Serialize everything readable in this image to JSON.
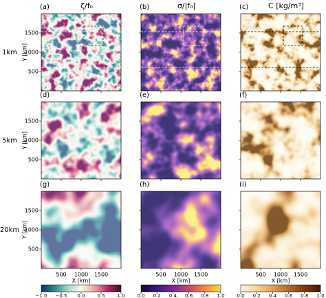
{
  "chart_data": {
    "type": "image-grid",
    "panels": [
      "(a)",
      "(b)",
      "(c)",
      "(d)",
      "(e)",
      "(f)",
      "(g)",
      "(h)",
      "(i)"
    ],
    "rows": [
      "1km",
      "5km",
      "20km"
    ],
    "columns": [
      {
        "title": "ζ/f₀",
        "lim": [
          -1,
          1
        ],
        "colors": [
          "#1d2e5a",
          "#2a8a8a",
          "#a8d8c8",
          "#f8f6f2",
          "#e8a8a0",
          "#b02a5a",
          "#3a0a30"
        ],
        "ticks": [
          {
            "value": -1,
            "label": "−1.0"
          },
          {
            "value": -0.5,
            "label": "−0.5"
          },
          {
            "value": 0,
            "label": "0.0"
          },
          0.5,
          {
            "value": 1,
            "label": "1.0"
          }
        ]
      },
      {
        "title": "σ/|f₀|",
        "lim": [
          0,
          1
        ],
        "colors": [
          "#0d0a30",
          "#3a1a7a",
          "#7a2a8a",
          "#c04a6a",
          "#f08a3a",
          "#f8e040"
        ],
        "ticks": [
          {
            "value": 0,
            "label": "0.0"
          },
          0.2,
          0.4,
          0.6,
          0.8,
          {
            "value": 1,
            "label": "1.0"
          }
        ]
      },
      {
        "title": "C [kg/m³]",
        "lim": [
          0,
          1
        ],
        "colors": [
          "#fdf6e0",
          "#f4d49a",
          "#e0a050",
          "#b86a28",
          "#7a3a10",
          "#3a1a08"
        ],
        "ticks": [
          {
            "value": 0,
            "label": "0.0"
          },
          0.2,
          0.4,
          0.6,
          0.8,
          {
            "value": 1,
            "label": "1.0"
          }
        ]
      }
    ],
    "xlabel": "X [km]",
    "ylabel": "Y [km]",
    "xlim": [
      0,
      2000
    ],
    "xticks": [
      500,
      1000,
      1500
    ],
    "ylim": [
      0,
      2000
    ],
    "yticks": [
      500,
      1000,
      1500
    ]
  }
}
